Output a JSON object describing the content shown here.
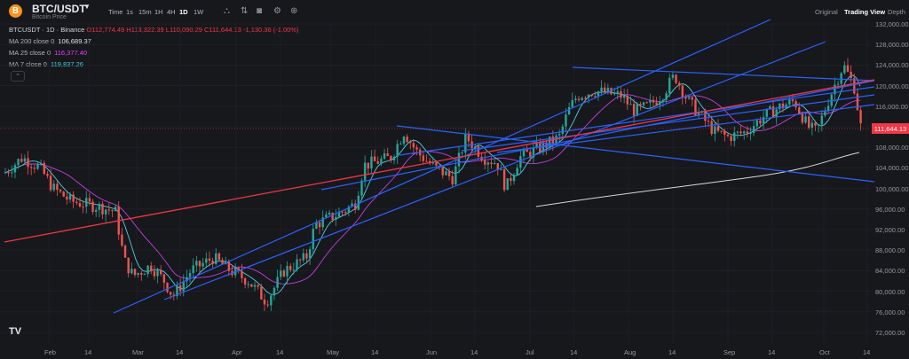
{
  "header": {
    "coin_icon": "bitcoin-icon",
    "coin_glyph": "B",
    "pair": "BTC/USDT",
    "subtitle": "Bitcoin Price",
    "timeframes": [
      "Time",
      "1s",
      "15m",
      "1H",
      "4H",
      "1D",
      "1W"
    ],
    "active_timeframe": "1D",
    "tools": [
      "indicators-icon",
      "compare-icon",
      "camera-icon",
      "settings-icon",
      "add-icon"
    ],
    "view_tabs": [
      "Original",
      "Trading View",
      "Depth"
    ],
    "active_view": "Trading View"
  },
  "legend": {
    "symbol": "BTCUSDT · 1D · Binance",
    "ohlc": "O112,774.49 H113,322.39 L110,090.29 C111,644.13 -1,130.36 (-1.00%)",
    "ma": [
      {
        "label": "MA 200 close 0",
        "value": "106,689.37",
        "color": "#e0e3eb"
      },
      {
        "label": "MA 25 close 0",
        "value": "116,377.40",
        "color": "#e040fb"
      },
      {
        "label": "MA 7 close 0",
        "value": "119,837.26",
        "color": "#4dd0e1"
      }
    ],
    "hide_glyph": "⌃"
  },
  "price_axis": [
    "132,000.00",
    "128,000.00",
    "124,000.00",
    "120,000.00",
    "116,000.00",
    "112,000.00",
    "108,000.00",
    "104,000.00",
    "100,000.00",
    "96,000.00",
    "92,000.00",
    "88,000.00",
    "84,000.00",
    "80,000.00",
    "76,000.00",
    "72,000.00"
  ],
  "current_price": "111,644.13",
  "time_axis": [
    "Feb",
    "14",
    "Mar",
    "14",
    "Apr",
    "14",
    "May",
    "14",
    "Jun",
    "14",
    "Jul",
    "14",
    "Aug",
    "14",
    "Sep",
    "14",
    "Oct",
    "14"
  ],
  "logo": "TV",
  "colors": {
    "up": "#26a69a",
    "down": "#ef5350",
    "trend_blue": "#2962ff",
    "trend_red": "#f23645"
  }
}
